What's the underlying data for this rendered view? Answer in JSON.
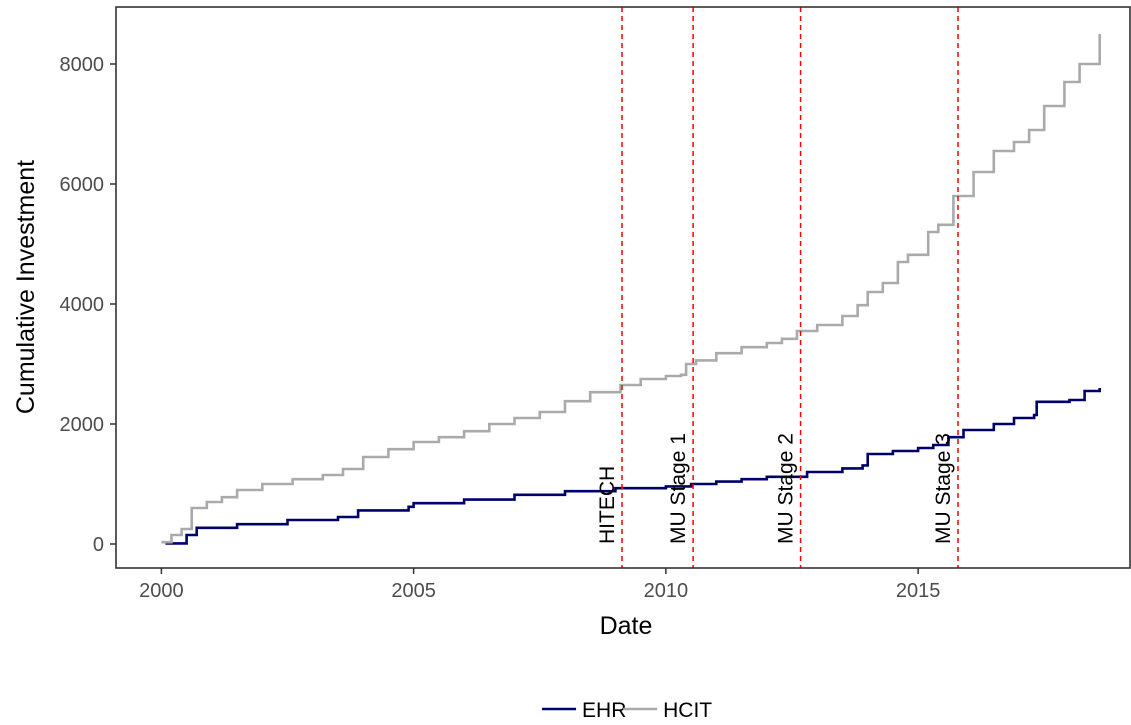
{
  "chart_data": {
    "type": "line",
    "title": "",
    "xlabel": "Date",
    "ylabel": "Cumulative Investment",
    "xlim": [
      1999.1,
      2019.2
    ],
    "ylim": [
      -400,
      8950
    ],
    "x_ticks": [
      2000,
      2005,
      2010,
      2015
    ],
    "x_tick_labels": [
      "2000",
      "2005",
      "2010",
      "2015"
    ],
    "y_ticks": [
      0,
      2000,
      4000,
      6000,
      8000
    ],
    "y_tick_labels": [
      "0",
      "2000",
      "4000",
      "6000",
      "8000"
    ],
    "grid": false,
    "legend_position": "bottom",
    "series": [
      {
        "name": "EHR",
        "color": "#00006b",
        "x": [
          2000.08,
          2000.5,
          2000.7,
          2001.5,
          2002.5,
          2003.5,
          2003.9,
          2004.9,
          2005.0,
          2006.0,
          2007.0,
          2008.0,
          2009.0,
          2010.0,
          2010.5,
          2011.0,
          2011.5,
          2012.0,
          2012.8,
          2013.5,
          2013.9,
          2014.0,
          2014.5,
          2015.0,
          2015.3,
          2015.6,
          2015.9,
          2016.5,
          2016.9,
          2017.3,
          2017.35,
          2018.0,
          2018.3,
          2018.6
        ],
        "y": [
          10,
          150,
          270,
          330,
          400,
          450,
          560,
          620,
          680,
          740,
          820,
          880,
          930,
          960,
          1000,
          1040,
          1080,
          1120,
          1200,
          1260,
          1310,
          1500,
          1550,
          1600,
          1650,
          1780,
          1900,
          2000,
          2100,
          2150,
          2370,
          2400,
          2550,
          2600
        ]
      },
      {
        "name": "HCIT",
        "color": "#aaaaaa",
        "x": [
          2000.0,
          2000.2,
          2000.4,
          2000.6,
          2000.9,
          2001.2,
          2001.5,
          2002.0,
          2002.6,
          2003.2,
          2003.6,
          2004.0,
          2004.5,
          2005.0,
          2005.5,
          2006.0,
          2006.5,
          2007.0,
          2007.5,
          2008.0,
          2008.5,
          2009.1,
          2009.5,
          2010.0,
          2010.3,
          2010.4,
          2010.6,
          2011.0,
          2011.5,
          2012.0,
          2012.3,
          2012.6,
          2013.0,
          2013.5,
          2013.8,
          2014.0,
          2014.3,
          2014.6,
          2014.8,
          2015.2,
          2015.4,
          2015.7,
          2016.1,
          2016.5,
          2016.9,
          2017.2,
          2017.5,
          2017.9,
          2018.2,
          2018.6
        ],
        "y": [
          30,
          150,
          250,
          600,
          700,
          780,
          900,
          1000,
          1080,
          1150,
          1250,
          1450,
          1580,
          1700,
          1780,
          1880,
          2000,
          2100,
          2200,
          2380,
          2530,
          2650,
          2750,
          2800,
          2820,
          3000,
          3060,
          3180,
          3280,
          3350,
          3420,
          3550,
          3650,
          3800,
          3980,
          4200,
          4350,
          4700,
          4820,
          5200,
          5320,
          5800,
          6200,
          6550,
          6700,
          6900,
          7300,
          7700,
          8000,
          8500
        ]
      }
    ],
    "vlines": [
      {
        "label": "HITECH",
        "x": 2009.13,
        "color": "#ff0000",
        "style": "dashed"
      },
      {
        "label": "MU Stage 1",
        "x": 2010.54,
        "color": "#ff0000",
        "style": "dashed"
      },
      {
        "label": "MU Stage 2",
        "x": 2012.67,
        "color": "#ff0000",
        "style": "dashed"
      },
      {
        "label": "MU Stage 3",
        "x": 2015.79,
        "color": "#ff0000",
        "style": "dashed"
      }
    ]
  }
}
